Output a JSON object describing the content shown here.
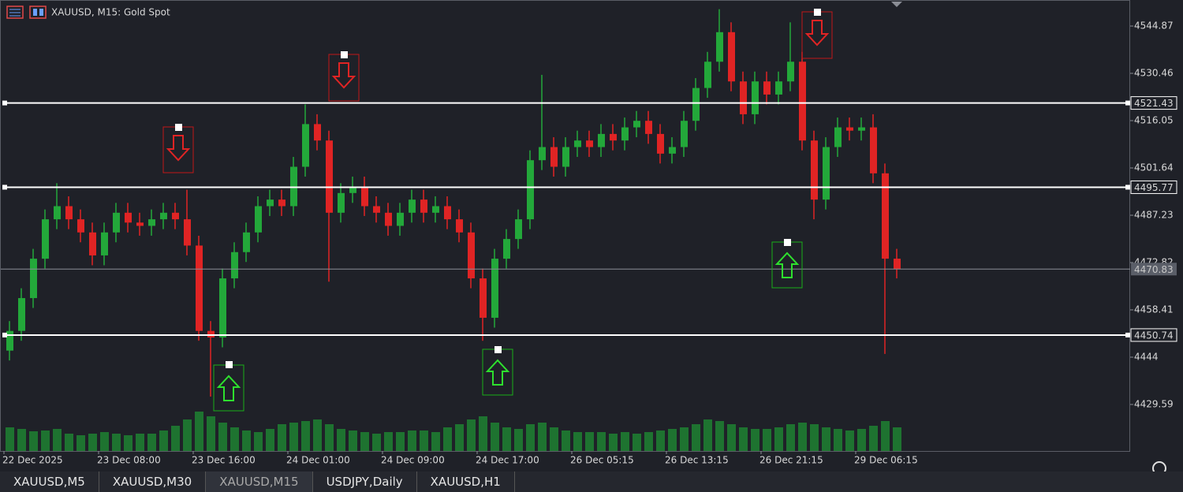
{
  "header": {
    "title": "XAUUSD, M15:  Gold Spot"
  },
  "chart_data": {
    "type": "candlestick",
    "categories": [
      "22 Dec 2025",
      null,
      null,
      null,
      null,
      null,
      null,
      null,
      "23 Dec 08:00",
      null,
      null,
      null,
      null,
      null,
      null,
      null,
      "23 Dec 16:00",
      null,
      null,
      null,
      null,
      null,
      null,
      null,
      "24 Dec 01:00",
      null,
      null,
      null,
      null,
      null,
      null,
      null,
      "24 Dec 09:00",
      null,
      null,
      null,
      null,
      null,
      null,
      null,
      "24 Dec 17:00",
      null,
      null,
      null,
      null,
      null,
      null,
      null,
      "26 Dec 05:15",
      null,
      null,
      null,
      null,
      null,
      null,
      null,
      "26 Dec 13:15",
      null,
      null,
      null,
      null,
      null,
      null,
      null,
      "26 Dec 21:15",
      null,
      null,
      null,
      null,
      null,
      null,
      null,
      "29 Dec 06:15",
      null,
      null,
      null
    ],
    "open": [
      4446,
      4452,
      4462,
      4474,
      4486,
      4490,
      4486,
      4482,
      4475,
      4482,
      4488,
      4485,
      4484,
      4486,
      4488,
      4486,
      4478,
      4452,
      4450,
      4468,
      4476,
      4482,
      4490,
      4492,
      4490,
      4502,
      4515,
      4510,
      4488,
      4494,
      4496,
      4490,
      4488,
      4484,
      4488,
      4492,
      4488,
      4490,
      4486,
      4482,
      4468,
      4456,
      4474,
      4480,
      4486,
      4504,
      4508,
      4502,
      4508,
      4510,
      4508,
      4512,
      4510,
      4514,
      4516,
      4512,
      4506,
      4508,
      4516,
      4526,
      4534,
      4543,
      4528,
      4518,
      4528,
      4524,
      4528,
      4534,
      4510,
      4492,
      4508,
      4514,
      4513,
      4514,
      4500,
      4474
    ],
    "high": [
      4455,
      4465,
      4477,
      4489,
      4497,
      4493,
      4489,
      4485,
      4485,
      4491,
      4491,
      4488,
      4489,
      4491,
      4491,
      4495,
      4481,
      4455,
      4471,
      4479,
      4485,
      4493,
      4495,
      4495,
      4505,
      4521,
      4518,
      4513,
      4497,
      4499,
      4499,
      4493,
      4491,
      4491,
      4495,
      4495,
      4493,
      4493,
      4489,
      4485,
      4471,
      4477,
      4483,
      4489,
      4507,
      4530,
      4511,
      4511,
      4513,
      4513,
      4515,
      4515,
      4517,
      4519,
      4519,
      4515,
      4511,
      4519,
      4529,
      4537,
      4550,
      4546,
      4531,
      4531,
      4531,
      4531,
      4546,
      4537,
      4513,
      4511,
      4517,
      4517,
      4517,
      4518,
      4503,
      4477
    ],
    "low": [
      4443,
      4449,
      4459,
      4471,
      4483,
      4483,
      4479,
      4472,
      4472,
      4479,
      4482,
      4481,
      4481,
      4483,
      4483,
      4475,
      4449,
      4432,
      4447,
      4465,
      4473,
      4479,
      4487,
      4487,
      4487,
      4499,
      4507,
      4467,
      4485,
      4491,
      4487,
      4485,
      4481,
      4481,
      4485,
      4485,
      4485,
      4483,
      4479,
      4465,
      4449,
      4453,
      4471,
      4477,
      4483,
      4501,
      4499,
      4499,
      4505,
      4505,
      4505,
      4507,
      4507,
      4511,
      4509,
      4503,
      4503,
      4505,
      4513,
      4523,
      4531,
      4525,
      4515,
      4515,
      4521,
      4521,
      4525,
      4507,
      4486,
      4489,
      4505,
      4510,
      4510,
      4497,
      4445,
      4468
    ],
    "close": [
      4452,
      4462,
      4474,
      4486,
      4490,
      4486,
      4482,
      4475,
      4482,
      4488,
      4485,
      4484,
      4486,
      4488,
      4486,
      4478,
      4452,
      4450,
      4468,
      4476,
      4482,
      4490,
      4492,
      4490,
      4502,
      4515,
      4510,
      4488,
      4494,
      4496,
      4490,
      4488,
      4484,
      4488,
      4492,
      4488,
      4490,
      4486,
      4482,
      4468,
      4456,
      4474,
      4480,
      4486,
      4504,
      4508,
      4502,
      4508,
      4510,
      4508,
      4512,
      4510,
      4514,
      4516,
      4512,
      4506,
      4508,
      4516,
      4526,
      4534,
      4543,
      4528,
      4518,
      4528,
      4524,
      4528,
      4534,
      4510,
      4492,
      4508,
      4514,
      4513,
      4514,
      4500,
      4474,
      4470.83
    ],
    "volume": [
      30,
      28,
      25,
      26,
      28,
      22,
      20,
      22,
      24,
      22,
      20,
      22,
      22,
      26,
      32,
      40,
      50,
      44,
      36,
      30,
      26,
      24,
      28,
      34,
      36,
      38,
      40,
      34,
      28,
      26,
      24,
      22,
      24,
      24,
      26,
      26,
      24,
      30,
      34,
      40,
      44,
      36,
      30,
      28,
      34,
      36,
      30,
      26,
      24,
      24,
      24,
      22,
      24,
      22,
      24,
      26,
      28,
      30,
      34,
      40,
      38,
      34,
      30,
      28,
      28,
      30,
      34,
      36,
      34,
      30,
      28,
      26,
      28,
      32,
      38,
      30
    ],
    "up_color": "#23a83a",
    "down_color": "#e02424",
    "volume_color": "#1f8f33",
    "ylim": [
      4415.42,
      4552.8
    ],
    "yticks": [
      4544.87,
      4530.46,
      4516.05,
      4501.64,
      4487.23,
      4472.82,
      4458.41,
      4444.0,
      4429.59
    ],
    "levels": [
      4521.43,
      4495.77,
      4450.74
    ],
    "last_price": 4470.83
  },
  "tabs": [
    "XAUUSD,M5",
    "XAUUSD,M30",
    "XAUUSD,M15",
    "USDJPY,Daily",
    "XAUUSD,H1"
  ],
  "active_tab": 2
}
